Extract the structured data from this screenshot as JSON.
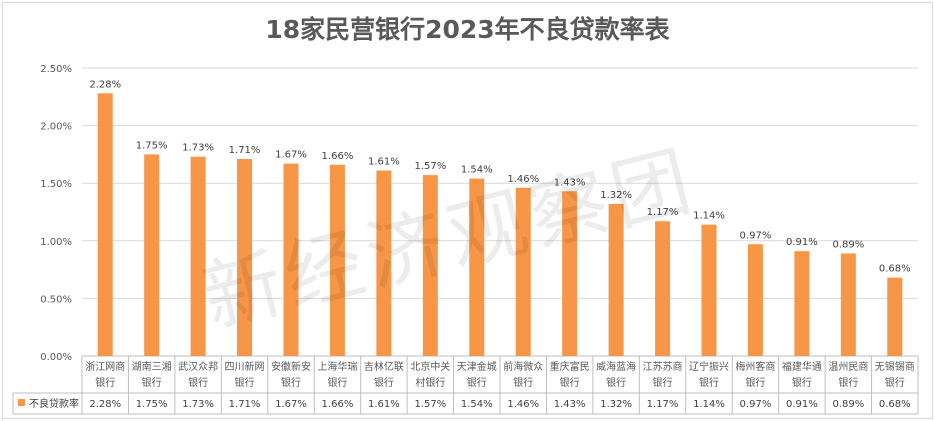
{
  "chart_data": {
    "type": "bar",
    "title": "18家民营银行2023年不良贷款率表",
    "ylim": [
      0,
      2.5
    ],
    "yticks": [
      "0.00%",
      "0.50%",
      "1.00%",
      "1.50%",
      "2.00%",
      "2.50%"
    ],
    "ytick_values": [
      0,
      0.5,
      1.0,
      1.5,
      2.0,
      2.5
    ],
    "grid": true,
    "legend": "bottom-left (data table)",
    "categories": [
      [
        "浙江网商",
        "银行"
      ],
      [
        "湖南三湘",
        "银行"
      ],
      [
        "武汉众邦",
        "银行"
      ],
      [
        "四川新网",
        "银行"
      ],
      [
        "安徽新安",
        "银行"
      ],
      [
        "上海华瑞",
        "银行"
      ],
      [
        "吉林亿联",
        "银行"
      ],
      [
        "北京中关",
        "村银行"
      ],
      [
        "天津金城",
        "银行"
      ],
      [
        "前海微众",
        "银行"
      ],
      [
        "重庆富民",
        "银行"
      ],
      [
        "威海蓝海",
        "银行"
      ],
      [
        "江苏苏商",
        "银行"
      ],
      [
        "辽宁振兴",
        "银行"
      ],
      [
        "梅州客商",
        "银行"
      ],
      [
        "福建华通",
        "银行"
      ],
      [
        "温州民商",
        "银行"
      ],
      [
        "无锡锡商",
        "银行"
      ]
    ],
    "series": [
      {
        "name": "不良贷款率",
        "color": "#f79646",
        "values": [
          2.28,
          1.75,
          1.73,
          1.71,
          1.67,
          1.66,
          1.61,
          1.57,
          1.54,
          1.46,
          1.43,
          1.32,
          1.17,
          1.14,
          0.97,
          0.91,
          0.89,
          0.68
        ],
        "labels": [
          "2.28%",
          "1.75%",
          "1.73%",
          "1.71%",
          "1.67%",
          "1.66%",
          "1.61%",
          "1.57%",
          "1.54%",
          "1.46%",
          "1.43%",
          "1.32%",
          "1.17%",
          "1.14%",
          "0.97%",
          "0.91%",
          "0.89%",
          "0.68%"
        ]
      }
    ]
  },
  "watermark": "新经济观察团"
}
